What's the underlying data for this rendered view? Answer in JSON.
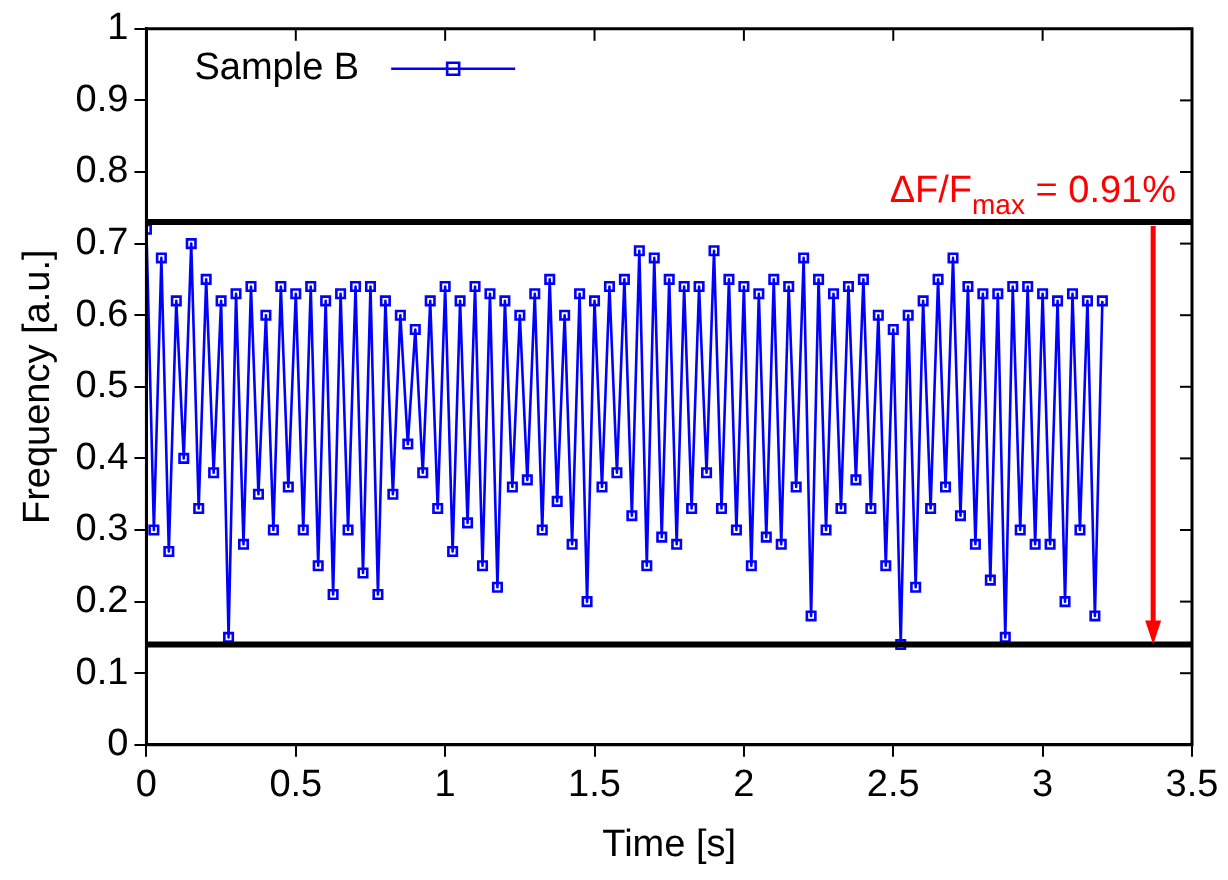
{
  "chart_data": {
    "type": "line",
    "xlabel": "Time [s]",
    "ylabel": "Frequency [a.u.]",
    "x": [
      0,
      0.025,
      0.05,
      0.075,
      0.1,
      0.125,
      0.15,
      0.175,
      0.2,
      0.225,
      0.25,
      0.275,
      0.3,
      0.325,
      0.35,
      0.375,
      0.4,
      0.425,
      0.45,
      0.475,
      0.5,
      0.525,
      0.55,
      0.575,
      0.6,
      0.625,
      0.65,
      0.675,
      0.7,
      0.725,
      0.75,
      0.775,
      0.8,
      0.825,
      0.85,
      0.875,
      0.9,
      0.925,
      0.95,
      0.975,
      1,
      1.025,
      1.05,
      1.075,
      1.1,
      1.125,
      1.15,
      1.175,
      1.2,
      1.225,
      1.25,
      1.275,
      1.3,
      1.325,
      1.35,
      1.375,
      1.4,
      1.425,
      1.45,
      1.475,
      1.5,
      1.525,
      1.55,
      1.575,
      1.6,
      1.625,
      1.65,
      1.675,
      1.7,
      1.725,
      1.75,
      1.775,
      1.8,
      1.825,
      1.85,
      1.875,
      1.9,
      1.925,
      1.95,
      1.975,
      2,
      2.025,
      2.05,
      2.075,
      2.1,
      2.125,
      2.15,
      2.175,
      2.2,
      2.225,
      2.25,
      2.275,
      2.3,
      2.325,
      2.35,
      2.375,
      2.4,
      2.425,
      2.45,
      2.475,
      2.5,
      2.525,
      2.55,
      2.575,
      2.6,
      2.625,
      2.65,
      2.675,
      2.7,
      2.725,
      2.75,
      2.775,
      2.8,
      2.825,
      2.85,
      2.875,
      2.9,
      2.925,
      2.95,
      2.975,
      3,
      3.025,
      3.05,
      3.075,
      3.1,
      3.125,
      3.15,
      3.175,
      3.2
    ],
    "series": [
      {
        "name": "Sample B",
        "color": "#0000ff",
        "values": [
          0.72,
          0.3,
          0.68,
          0.27,
          0.62,
          0.4,
          0.7,
          0.33,
          0.65,
          0.38,
          0.62,
          0.15,
          0.63,
          0.28,
          0.64,
          0.35,
          0.6,
          0.3,
          0.64,
          0.36,
          0.63,
          0.3,
          0.64,
          0.25,
          0.62,
          0.21,
          0.63,
          0.3,
          0.64,
          0.24,
          0.64,
          0.21,
          0.62,
          0.35,
          0.6,
          0.42,
          0.58,
          0.38,
          0.62,
          0.33,
          0.64,
          0.27,
          0.62,
          0.31,
          0.64,
          0.25,
          0.63,
          0.22,
          0.62,
          0.36,
          0.6,
          0.37,
          0.63,
          0.3,
          0.65,
          0.34,
          0.6,
          0.28,
          0.63,
          0.2,
          0.62,
          0.36,
          0.64,
          0.38,
          0.65,
          0.32,
          0.69,
          0.25,
          0.68,
          0.29,
          0.65,
          0.28,
          0.64,
          0.33,
          0.64,
          0.38,
          0.69,
          0.33,
          0.65,
          0.3,
          0.64,
          0.25,
          0.63,
          0.29,
          0.65,
          0.28,
          0.64,
          0.36,
          0.68,
          0.18,
          0.65,
          0.3,
          0.63,
          0.33,
          0.64,
          0.37,
          0.65,
          0.33,
          0.6,
          0.25,
          0.58,
          0.14,
          0.6,
          0.22,
          0.62,
          0.33,
          0.65,
          0.36,
          0.68,
          0.32,
          0.64,
          0.28,
          0.63,
          0.23,
          0.63,
          0.15,
          0.64,
          0.3,
          0.64,
          0.28,
          0.63,
          0.28,
          0.62,
          0.2,
          0.63,
          0.3,
          0.62,
          0.18,
          0.62
        ]
      }
    ],
    "xlim": [
      0,
      3.5
    ],
    "xticks": [
      0,
      0.5,
      1,
      1.5,
      2,
      2.5,
      3,
      3.5
    ],
    "ylim": [
      0,
      1
    ],
    "yticks": [
      0,
      0.1,
      0.2,
      0.3,
      0.4,
      0.5,
      0.6,
      0.7,
      0.8,
      0.9,
      1
    ],
    "ref_lines": [
      {
        "axis": "y",
        "value": 0.73,
        "color": "#000000"
      },
      {
        "axis": "y",
        "value": 0.14,
        "color": "#000000"
      }
    ],
    "annotations": [
      {
        "text": "ΔF/F$_{max}$ = 0.91%",
        "x": 3.37,
        "y": 0.73
      }
    ],
    "marker": "square",
    "legend": "top left",
    "grid": false
  }
}
